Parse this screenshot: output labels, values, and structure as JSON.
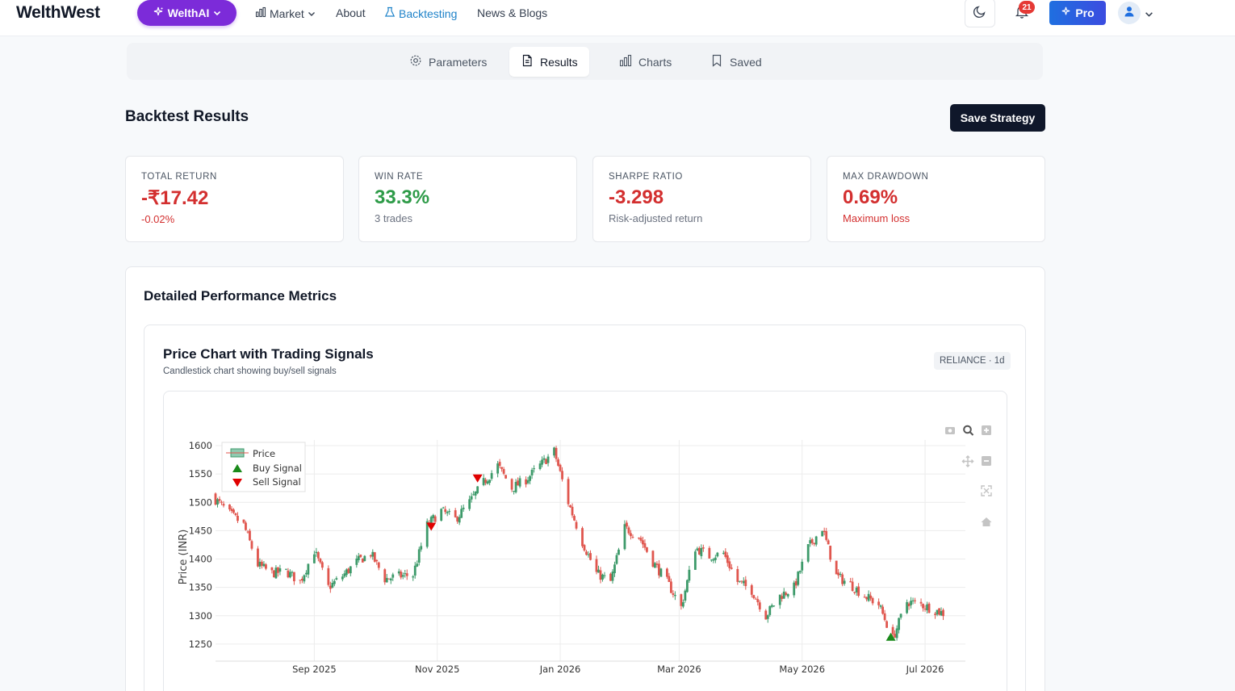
{
  "nav": {
    "brand": "WelthWest",
    "ai_label": "WelthAI",
    "links": [
      {
        "label": "Market"
      },
      {
        "label": "About"
      },
      {
        "label": "Backtesting"
      },
      {
        "label": "News & Blogs"
      }
    ],
    "notification_count": "21",
    "pro_label": "Pro"
  },
  "tabs": [
    {
      "label": "Parameters",
      "icon": "gear-icon"
    },
    {
      "label": "Results",
      "icon": "file-icon"
    },
    {
      "label": "Charts",
      "icon": "bar-chart-icon"
    },
    {
      "label": "Saved",
      "icon": "bookmark-icon"
    }
  ],
  "header": {
    "title": "Backtest Results",
    "save_label": "Save Strategy"
  },
  "metrics": [
    {
      "label": "TOTAL RETURN",
      "value": "-₹17.42",
      "sub": "-0.02%",
      "value_color": "#d32f2f",
      "sub_color": "#d32f2f"
    },
    {
      "label": "WIN RATE",
      "value": "33.3%",
      "sub": "3 trades",
      "value_color": "#2e9b48",
      "sub_color": "#6b7280"
    },
    {
      "label": "SHARPE RATIO",
      "value": "-3.298",
      "sub": "Risk-adjusted return",
      "value_color": "#d32f2f",
      "sub_color": "#6b7280"
    },
    {
      "label": "MAX DRAWDOWN",
      "value": "0.69%",
      "sub": "Maximum loss",
      "value_color": "#d32f2f",
      "sub_color": "#d32f2f"
    }
  ],
  "detail": {
    "title": "Detailed Performance Metrics",
    "chart_title": "Price Chart with Trading Signals",
    "chart_subtitle": "Candlestick chart showing buy/sell signals",
    "ticker": "RELIANCE · 1d"
  },
  "chart_data": {
    "type": "candlestick",
    "ylabel": "Price (INR)",
    "y_ticks": [
      1250,
      1300,
      1350,
      1400,
      1450,
      1500,
      1550,
      1600
    ],
    "ylim": [
      1220,
      1610
    ],
    "x_ticks": [
      "Sep 2025",
      "Nov 2025",
      "Jan 2026",
      "Mar 2026",
      "May 2026",
      "Jul 2026"
    ],
    "xlim": [
      "2025-07-14",
      "2026-07-21"
    ],
    "legend": [
      "Price",
      "Buy Signal",
      "Sell Signal"
    ],
    "legend_position": "top-left",
    "grid": true,
    "colors": {
      "up": "#3d9a6a",
      "down": "#e0564e",
      "buy": "#1a8a1a",
      "sell": "#e00000"
    },
    "close_anchors": [
      {
        "date": "2025-07-14",
        "close": 1505
      },
      {
        "date": "2025-07-21",
        "close": 1480
      },
      {
        "date": "2025-07-28",
        "close": 1460
      },
      {
        "date": "2025-08-04",
        "close": 1390
      },
      {
        "date": "2025-08-11",
        "close": 1375
      },
      {
        "date": "2025-08-18",
        "close": 1378
      },
      {
        "date": "2025-08-25",
        "close": 1360
      },
      {
        "date": "2025-09-01",
        "close": 1415
      },
      {
        "date": "2025-09-08",
        "close": 1350
      },
      {
        "date": "2025-09-15",
        "close": 1370
      },
      {
        "date": "2025-09-22",
        "close": 1395
      },
      {
        "date": "2025-09-29",
        "close": 1410
      },
      {
        "date": "2025-10-06",
        "close": 1365
      },
      {
        "date": "2025-10-13",
        "close": 1370
      },
      {
        "date": "2025-10-20",
        "close": 1372
      },
      {
        "date": "2025-10-27",
        "close": 1460
      },
      {
        "date": "2025-11-03",
        "close": 1485
      },
      {
        "date": "2025-11-10",
        "close": 1470
      },
      {
        "date": "2025-11-17",
        "close": 1500
      },
      {
        "date": "2025-11-24",
        "close": 1535
      },
      {
        "date": "2025-12-01",
        "close": 1565
      },
      {
        "date": "2025-12-08",
        "close": 1525
      },
      {
        "date": "2025-12-15",
        "close": 1540
      },
      {
        "date": "2025-12-22",
        "close": 1565
      },
      {
        "date": "2025-12-29",
        "close": 1590
      },
      {
        "date": "2026-01-05",
        "close": 1500
      },
      {
        "date": "2026-01-12",
        "close": 1430
      },
      {
        "date": "2026-01-19",
        "close": 1375
      },
      {
        "date": "2026-01-26",
        "close": 1360
      },
      {
        "date": "2026-02-02",
        "close": 1455
      },
      {
        "date": "2026-02-09",
        "close": 1440
      },
      {
        "date": "2026-02-16",
        "close": 1395
      },
      {
        "date": "2026-02-23",
        "close": 1360
      },
      {
        "date": "2026-03-02",
        "close": 1315
      },
      {
        "date": "2026-03-09",
        "close": 1420
      },
      {
        "date": "2026-03-16",
        "close": 1405
      },
      {
        "date": "2026-03-23",
        "close": 1410
      },
      {
        "date": "2026-03-30",
        "close": 1360
      },
      {
        "date": "2026-04-06",
        "close": 1345
      },
      {
        "date": "2026-04-13",
        "close": 1300
      },
      {
        "date": "2026-04-20",
        "close": 1335
      },
      {
        "date": "2026-04-27",
        "close": 1350
      },
      {
        "date": "2026-05-04",
        "close": 1420
      },
      {
        "date": "2026-05-11",
        "close": 1455
      },
      {
        "date": "2026-05-18",
        "close": 1370
      },
      {
        "date": "2026-05-25",
        "close": 1355
      },
      {
        "date": "2026-06-01",
        "close": 1335
      },
      {
        "date": "2026-06-08",
        "close": 1320
      },
      {
        "date": "2026-06-15",
        "close": 1260
      },
      {
        "date": "2026-06-22",
        "close": 1325
      },
      {
        "date": "2026-06-29",
        "close": 1320
      },
      {
        "date": "2026-07-06",
        "close": 1310
      },
      {
        "date": "2026-07-13",
        "close": 1300
      }
    ],
    "signals": [
      {
        "type": "sell",
        "date": "2025-10-29",
        "price": 1457
      },
      {
        "type": "sell",
        "date": "2025-11-21",
        "price": 1542
      },
      {
        "type": "buy",
        "date": "2026-06-14",
        "price": 1263
      }
    ]
  }
}
